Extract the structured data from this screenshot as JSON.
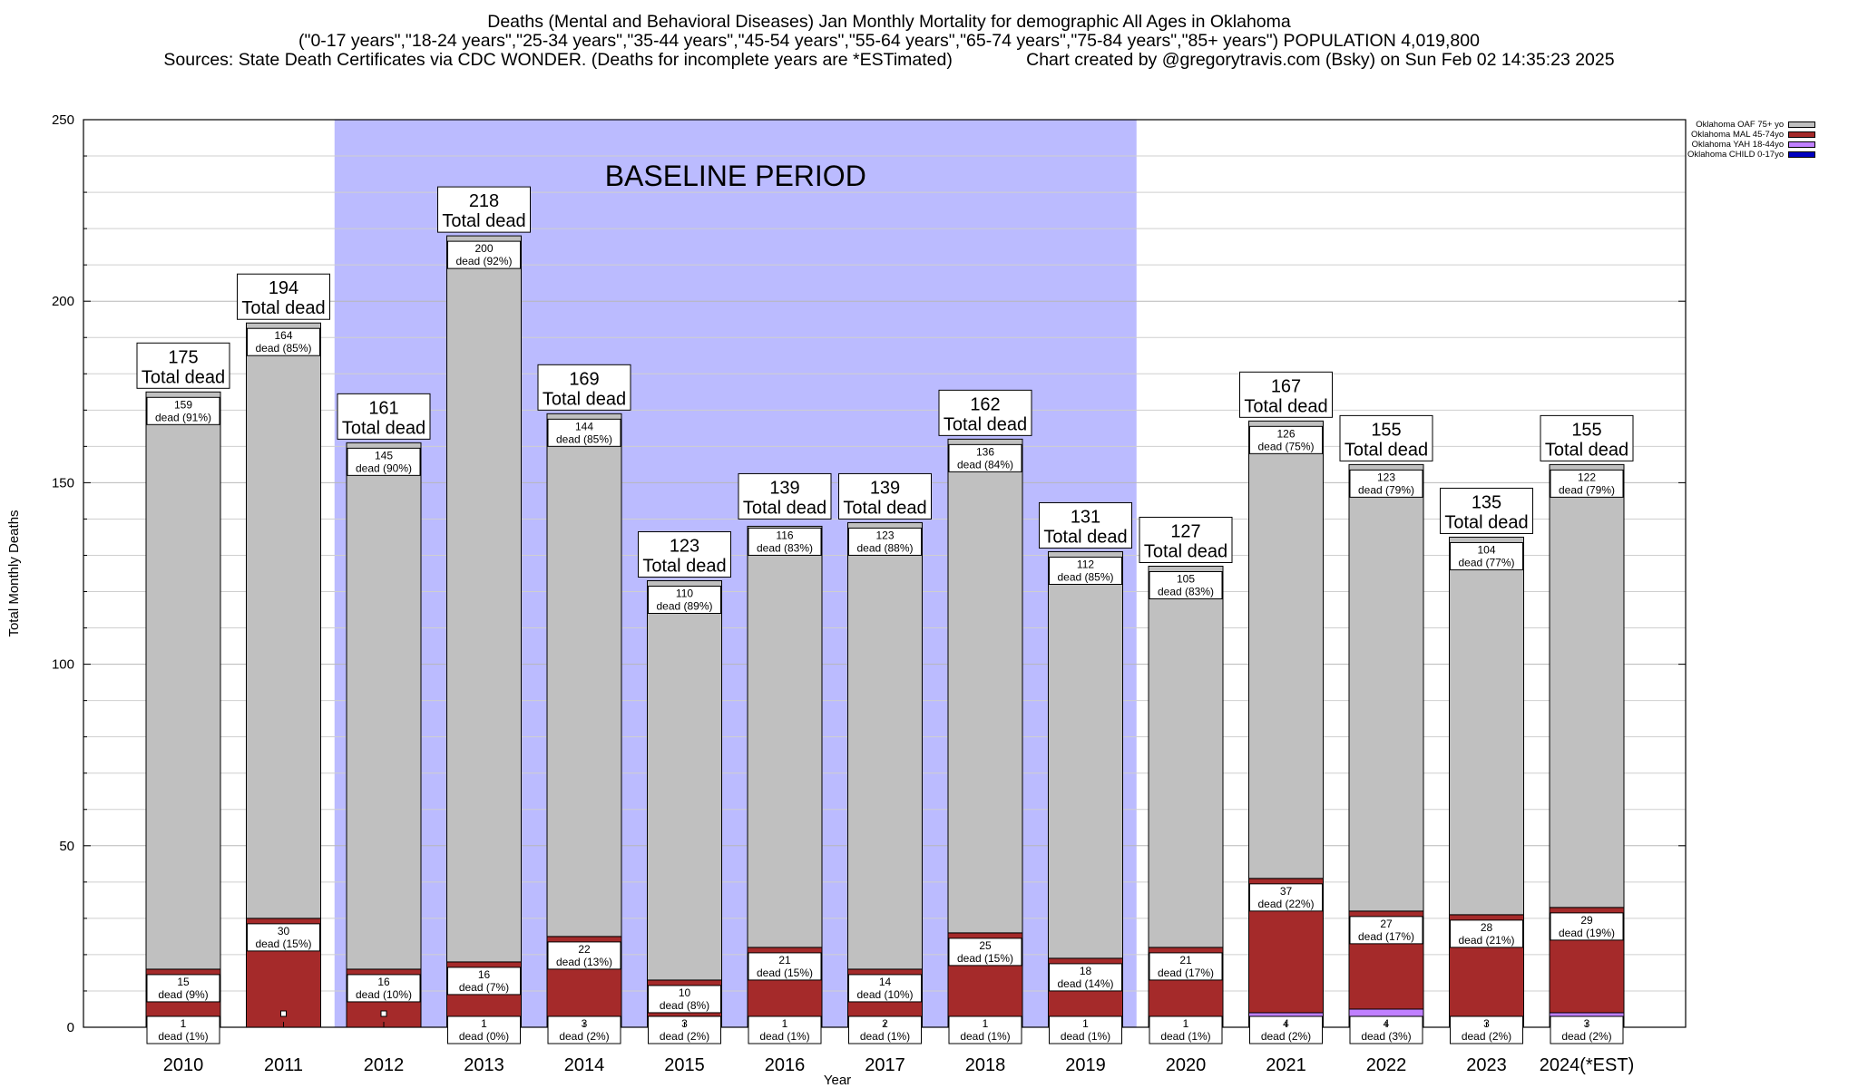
{
  "header": {
    "line1": "Deaths (Mental and Behavioral Diseases) Jan Monthly Mortality for demographic All Ages in Oklahoma",
    "line2": "(\"0-17 years\",\"18-24 years\",\"25-34 years\",\"35-44 years\",\"45-54 years\",\"55-64 years\",\"65-74 years\",\"75-84 years\",\"85+ years\") POPULATION 4,019,800",
    "line3": "Sources: State Death Certificates via CDC WONDER. (Deaths for incomplete years are *ESTimated)               Chart created by @gregorytravis.com (Bsky) on Sun Feb 02 14:35:23 2025"
  },
  "legend": {
    "items": [
      {
        "label": "Oklahoma OAF 75+ yo",
        "color": "#c0c0c0"
      },
      {
        "label": "Oklahoma MAL 45-74yo",
        "color": "#a52a2a"
      },
      {
        "label": "Oklahoma YAH 18-44yo",
        "color": "#c080ff"
      },
      {
        "label": "Oklahoma CHILD 0-17yo",
        "color": "#0000c0"
      }
    ]
  },
  "chart_data": {
    "type": "bar",
    "stacked": true,
    "title": "Deaths (Mental and Behavioral Diseases) Jan Monthly Mortality for demographic All Ages in Oklahoma",
    "xlabel": "Year",
    "ylabel": "Total Monthly Deaths",
    "ylim": [
      0,
      250
    ],
    "yticks": [
      0,
      50,
      100,
      150,
      200,
      250
    ],
    "grid": true,
    "legend_position": "top-right",
    "baseline_label": "BASELINE PERIOD",
    "baseline_range": [
      "2012",
      "2019"
    ],
    "total_suffix": "Total dead",
    "dead_word": "dead",
    "categories": [
      "2010",
      "2011",
      "2012",
      "2013",
      "2014",
      "2015",
      "2016",
      "2017",
      "2018",
      "2019",
      "2020",
      "2021",
      "2022",
      "2023",
      "2024(*EST)"
    ],
    "totals": [
      175,
      194,
      161,
      218,
      169,
      123,
      139,
      139,
      162,
      131,
      127,
      167,
      155,
      135,
      155
    ],
    "series": [
      {
        "name": "Oklahoma CHILD 0-17yo",
        "color": "#0000c0",
        "values": [
          0,
          0,
          0,
          1,
          0,
          0,
          0,
          0,
          0,
          0,
          0,
          0,
          1,
          0,
          1
        ]
      },
      {
        "name": "Oklahoma YAH 18-44yo",
        "color": "#c080ff",
        "values": [
          1,
          0,
          0,
          1,
          3,
          3,
          1,
          2,
          1,
          1,
          1,
          4,
          4,
          3,
          3
        ]
      },
      {
        "name": "Oklahoma MAL 45-74yo",
        "color": "#a52a2a",
        "values": [
          15,
          30,
          16,
          16,
          22,
          10,
          21,
          14,
          25,
          18,
          21,
          37,
          27,
          28,
          29
        ]
      },
      {
        "name": "Oklahoma OAF 75+ yo",
        "color": "#c0c0c0",
        "values": [
          159,
          164,
          145,
          200,
          144,
          110,
          116,
          123,
          136,
          112,
          105,
          126,
          123,
          104,
          122
        ]
      }
    ],
    "labels": {
      "OAF": [
        "159|dead (91%)",
        "164|dead (85%)",
        "145|dead (90%)",
        "200|dead (92%)",
        "144|dead (85%)",
        "110|dead (89%)",
        "116|dead (83%)",
        "123|dead (88%)",
        "136|dead (84%)",
        "112|dead (85%)",
        "105|dead (83%)",
        "126|dead (75%)",
        "123|dead (79%)",
        "104|dead (77%)",
        "122|dead (79%)"
      ],
      "MAL": [
        "15|dead (9%)",
        "30|dead (15%)",
        "16|dead (10%)",
        "16|dead (7%)",
        "22|dead (13%)",
        "10|dead (8%)",
        "21|dead (15%)",
        "14|dead (10%)",
        "25|dead (15%)",
        "18|dead (14%)",
        "21|dead (17%)",
        "37|dead (22%)",
        "27|dead (17%)",
        "28|dead (21%)",
        "29|dead (19%)"
      ],
      "YAH": [
        "1|dead (1%)",
        "",
        "",
        "1|dead (0%)",
        "3|dead (2%)",
        "3|dead (2%)",
        "1|dead (1%)",
        "2|dead (1%)",
        "1|dead (1%)",
        "1|dead (1%)",
        "1|dead (1%)",
        "4|dead (2%)",
        "4|dead (3%)",
        "3|dead (2%)",
        "3|dead (2%)"
      ]
    }
  }
}
